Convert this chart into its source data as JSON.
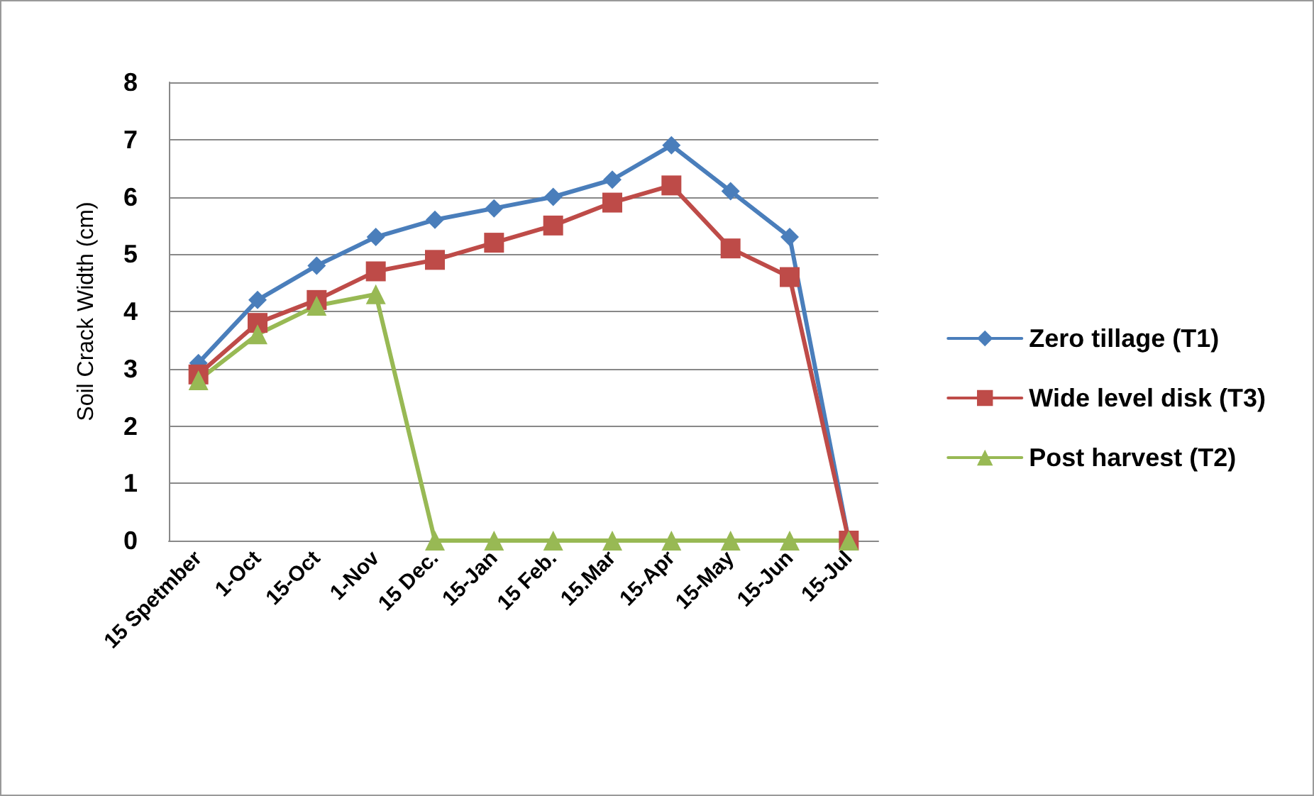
{
  "chart_data": {
    "type": "line",
    "ylabel": "Soil Crack Width (cm)",
    "categories": [
      "15 Spetmber",
      "1-Oct",
      "15-Oct",
      "1-Nov",
      "15 Dec.",
      "15-Jan",
      "15 Feb.",
      "15.Mar",
      "15-Apr",
      "15-May",
      "15-Jun",
      "15-Jul"
    ],
    "series": [
      {
        "name": "Zero tillage (T1)",
        "color": "#4a7ebb",
        "marker": "diamond",
        "values": [
          3.1,
          4.2,
          4.8,
          5.3,
          5.6,
          5.8,
          6.0,
          6.3,
          6.9,
          6.1,
          5.3,
          0
        ]
      },
      {
        "name": "Wide level disk (T3)",
        "color": "#be4b48",
        "marker": "square",
        "values": [
          2.9,
          3.8,
          4.2,
          4.7,
          4.9,
          5.2,
          5.5,
          5.9,
          6.2,
          5.1,
          4.6,
          0
        ]
      },
      {
        "name": "Post harvest (T2)",
        "color": "#98b954",
        "marker": "triangle",
        "values": [
          2.8,
          3.6,
          4.1,
          4.3,
          0,
          0,
          0,
          0,
          0,
          0,
          0,
          0
        ]
      }
    ],
    "ylim": [
      0,
      8
    ],
    "yticks": [
      0,
      1,
      2,
      3,
      4,
      5,
      6,
      7,
      8
    ],
    "grid": "y",
    "legend": "right",
    "line_style": "solid"
  }
}
